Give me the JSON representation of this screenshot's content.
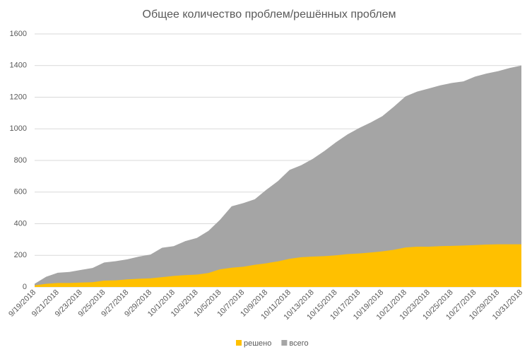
{
  "chart_data": {
    "type": "area",
    "title": "Общее количество проблем/решённых проблем",
    "categories": [
      "9/19/2018",
      null,
      "9/21/2018",
      null,
      "9/23/2018",
      null,
      "9/25/2018",
      null,
      "9/27/2018",
      null,
      "9/29/2018",
      null,
      "10/1/2018",
      null,
      "10/3/2018",
      null,
      "10/5/2018",
      null,
      "10/7/2018",
      null,
      "10/9/2018",
      null,
      "10/11/2018",
      null,
      "10/13/2018",
      null,
      "10/15/2018",
      null,
      "10/17/2018",
      null,
      "10/19/2018",
      null,
      "10/21/2018",
      null,
      "10/23/2018",
      null,
      "10/25/2018",
      null,
      "10/27/2018",
      null,
      "10/29/2018",
      null,
      "10/31/2018"
    ],
    "series": [
      {
        "name": "решено",
        "color": "#ffc000",
        "values": [
          10,
          20,
          25,
          25,
          28,
          30,
          40,
          42,
          48,
          52,
          55,
          62,
          70,
          75,
          78,
          88,
          112,
          122,
          128,
          140,
          150,
          162,
          178,
          188,
          192,
          195,
          200,
          208,
          212,
          218,
          225,
          235,
          250,
          255,
          255,
          258,
          260,
          262,
          265,
          268,
          270,
          270,
          270
        ]
      },
      {
        "name": "всего",
        "color": "#a5a5a5",
        "values": [
          20,
          65,
          90,
          95,
          108,
          120,
          155,
          163,
          175,
          192,
          205,
          248,
          258,
          290,
          310,
          355,
          425,
          510,
          530,
          555,
          615,
          670,
          740,
          770,
          810,
          860,
          915,
          965,
          1005,
          1040,
          1080,
          1140,
          1205,
          1235,
          1255,
          1275,
          1290,
          1300,
          1330,
          1350,
          1365,
          1385,
          1400
        ]
      }
    ],
    "ylim": [
      0,
      1600
    ],
    "yticks": [
      0,
      200,
      400,
      600,
      800,
      1000,
      1200,
      1400,
      1600
    ],
    "grid": true,
    "legend": "bottom"
  }
}
